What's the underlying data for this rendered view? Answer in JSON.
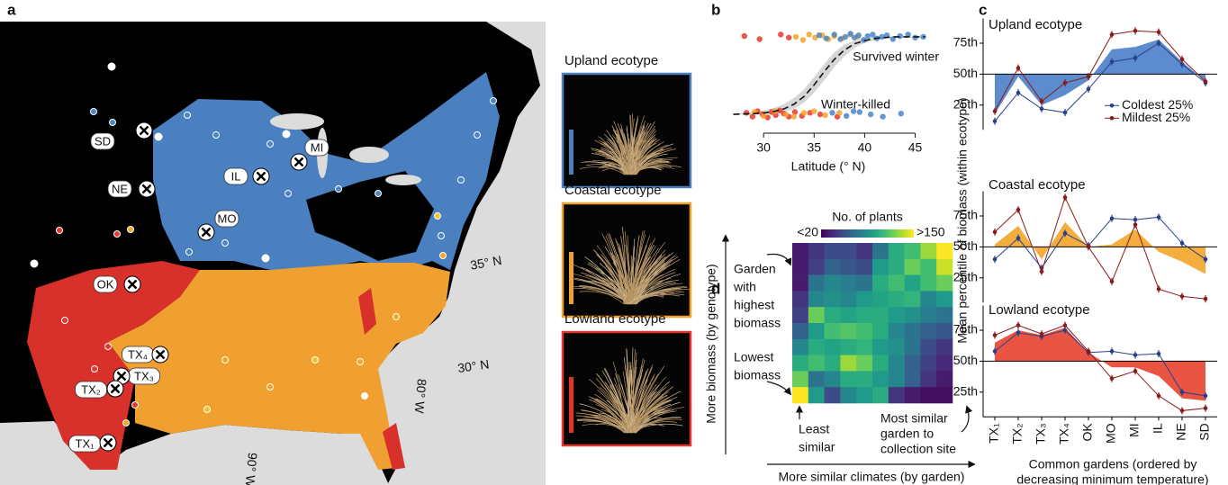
{
  "map": {
    "panel": "a",
    "sites": [
      "SD",
      "NE",
      "MO",
      "OK",
      "IL",
      "MI",
      "TX₄",
      "TX₃",
      "TX₂",
      "TX₁"
    ],
    "latitude_labels": [
      "35° N",
      "30° N"
    ],
    "longitude_labels": [
      "90° W",
      "80° W"
    ]
  },
  "photos": [
    {
      "title": "Upland ecotype",
      "color": "#4a80c0"
    },
    {
      "title": "Coastal ecotype",
      "color": "#f0a030"
    },
    {
      "title": "Lowland ecotype",
      "color": "#e0352c"
    }
  ],
  "chart_data": [
    {
      "type": "scatter",
      "panel": "b",
      "xlabel": "Latitude (° N)",
      "xlim": [
        26.6,
        46.2
      ],
      "xticks": [
        30,
        35,
        40,
        45
      ],
      "ylim": [
        -0.15,
        1.15
      ],
      "annotations": [
        "Survived winter",
        "Winter-killed"
      ],
      "series": [
        {
          "color": "#e8372f",
          "x": [
            28.1,
            29.6,
            31.7,
            32.5,
            28.3,
            28.9,
            29.4,
            29.9,
            30.4,
            30.8,
            31.2,
            31.6,
            32.0,
            32.5,
            33.1,
            33.8,
            34.6,
            35.6,
            37.3
          ],
          "values": [
            1.01,
            0.97,
            1.03,
            0.99,
            0.02,
            -0.03,
            0.04,
            0.0,
            -0.04,
            0.03,
            -0.01,
            0.05,
            0.01,
            -0.03,
            0.03,
            -0.02,
            0.02,
            0.0,
            -0.03
          ]
        },
        {
          "color": "#f2a529",
          "x": [
            33.2,
            33.9,
            34.5,
            35.1,
            35.8,
            36.4,
            37.0,
            37.8,
            38.6,
            39.3,
            29.1,
            30.0,
            31.1,
            32.2,
            33.0,
            34.0,
            35.0,
            36.1,
            37.5
          ],
          "values": [
            1.0,
            0.96,
            1.03,
            0.99,
            1.02,
            0.97,
            1.01,
            0.98,
            1.03,
            1.0,
            0.03,
            -0.02,
            0.04,
            0.0,
            -0.03,
            0.02,
            0.04,
            -0.01,
            0.02
          ]
        },
        {
          "color": "#4a86c8",
          "x": [
            35.5,
            36.2,
            37.0,
            37.6,
            38.1,
            38.6,
            39.0,
            39.4,
            39.9,
            40.3,
            40.8,
            41.2,
            41.7,
            42.2,
            42.8,
            43.5,
            44.3,
            45.0,
            45.8,
            36.8,
            38.2,
            39.5,
            40.6,
            41.8,
            43.6,
            38.9
          ],
          "values": [
            1.02,
            0.98,
            1.03,
            0.97,
            1.0,
            1.04,
            0.99,
            1.02,
            0.96,
            1.01,
            1.03,
            0.98,
            1.0,
            1.02,
            0.97,
            1.01,
            1.03,
            0.99,
            1.0,
            0.02,
            -0.02,
            0.03,
            0.0,
            -0.03,
            0.01,
            0.04
          ]
        }
      ],
      "curve": {
        "x": [
          27,
          28,
          29,
          30,
          31,
          32,
          33,
          34,
          35,
          36,
          37,
          38,
          39,
          40,
          41,
          42,
          43,
          44,
          45,
          46
        ],
        "values": [
          0.0,
          0.005,
          0.009,
          0.018,
          0.036,
          0.07,
          0.13,
          0.23,
          0.38,
          0.55,
          0.71,
          0.83,
          0.91,
          0.95,
          0.98,
          0.99,
          1.0,
          1.0,
          1.0,
          1.0
        ],
        "band_lower": [
          0.0,
          0.0,
          0.0,
          0.0,
          0.01,
          0.03,
          0.07,
          0.15,
          0.28,
          0.44,
          0.61,
          0.75,
          0.86,
          0.92,
          0.96,
          0.98,
          0.99,
          0.99,
          0.99,
          0.99
        ],
        "band_upper": [
          0.01,
          0.02,
          0.03,
          0.05,
          0.08,
          0.13,
          0.21,
          0.32,
          0.48,
          0.65,
          0.8,
          0.9,
          0.95,
          0.98,
          1.0,
          1.0,
          1.0,
          1.0,
          1.0,
          1.0
        ]
      }
    },
    {
      "type": "line",
      "panel": "c",
      "title": "Upland ecotype",
      "ylabel": "Mean percentile of biomass (within ecotype)",
      "ylim": [
        5,
        95
      ],
      "yticks": [
        {
          "value": 25,
          "label": "25th"
        },
        {
          "value": 50,
          "label": "50th"
        },
        {
          "value": 75,
          "label": "75th"
        }
      ],
      "baseline": 50,
      "legend": "lower right",
      "series": [
        {
          "name": "Coldest 25%",
          "color": "#27408b",
          "values": [
            12,
            35,
            22,
            19,
            38,
            60,
            63,
            75,
            58,
            43
          ]
        },
        {
          "name": "Mildest 25%",
          "color": "#8b1a1a",
          "values": [
            20,
            55,
            28,
            43,
            48,
            82,
            85,
            84,
            62,
            44
          ]
        }
      ],
      "fill": {
        "color": "#4a80c8",
        "values": [
          18,
          48,
          25,
          33,
          45,
          70,
          72,
          78,
          60,
          44
        ]
      }
    },
    {
      "type": "line",
      "title": "Coastal ecotype",
      "ylim": [
        5,
        95
      ],
      "yticks": [
        {
          "value": 25,
          "label": "25th"
        },
        {
          "value": 50,
          "label": "50th"
        },
        {
          "value": 75,
          "label": "75th"
        }
      ],
      "baseline": 50,
      "series": [
        {
          "color": "#27408b",
          "values": [
            40,
            57,
            33,
            61,
            51,
            73,
            72,
            74,
            53,
            40
          ]
        },
        {
          "color": "#8b1a1a",
          "values": [
            62,
            80,
            30,
            90,
            50,
            22,
            68,
            16,
            10,
            8
          ]
        }
      ],
      "fill": {
        "color": "#f2a529",
        "values": [
          52,
          67,
          40,
          70,
          50,
          52,
          64,
          46,
          38,
          28
        ]
      }
    },
    {
      "type": "line",
      "title": "Lowland ecotype",
      "categories": [
        "TX₁",
        "TX₂",
        "TX₃",
        "TX₄",
        "OK",
        "MO",
        "MI",
        "IL",
        "NE",
        "SD"
      ],
      "xlabel": [
        "Common gardens (ordered by",
        "decreasing minimum temperature)"
      ],
      "ylim": [
        5,
        95
      ],
      "yticks": [
        {
          "value": 25,
          "label": "25th"
        },
        {
          "value": 50,
          "label": "50th"
        },
        {
          "value": 75,
          "label": "75th"
        }
      ],
      "baseline": 50,
      "series": [
        {
          "color": "#27408b",
          "values": [
            58,
            73,
            70,
            75,
            57,
            58,
            55,
            56,
            25,
            22
          ]
        },
        {
          "color": "#8b1a1a",
          "values": [
            71,
            79,
            72,
            79,
            58,
            36,
            42,
            22,
            10,
            12
          ]
        }
      ],
      "fill": {
        "color": "#e8432f",
        "values": [
          65,
          75,
          71,
          77,
          57,
          45,
          45,
          38,
          20,
          18
        ]
      }
    },
    {
      "type": "heatmap",
      "panel": "d",
      "colorbar_title": "No. of plants",
      "zlim": [
        20,
        150
      ],
      "colorbar_ticks": [
        {
          "value": 20,
          "label": "<20"
        },
        {
          "value": 150,
          "label": ">150"
        }
      ],
      "colormap": "viridis",
      "ylabel": "More biomass (by genotype)",
      "xlabel": "More similar climates (by garden)",
      "annotations": [
        [
          "Garden",
          "with",
          "highest",
          "biomass"
        ],
        [
          "Lowest",
          "biomass"
        ],
        [
          "Least",
          "similar"
        ],
        [
          "Most similar",
          "garden to",
          "collection site"
        ]
      ],
      "z": [
        [
          30,
          40,
          50,
          50,
          40,
          70,
          100,
          110,
          130,
          160
        ],
        [
          30,
          45,
          60,
          55,
          50,
          90,
          100,
          120,
          110,
          140
        ],
        [
          30,
          70,
          80,
          75,
          70,
          100,
          110,
          95,
          110,
          120
        ],
        [
          40,
          80,
          85,
          80,
          90,
          95,
          100,
          105,
          80,
          90
        ],
        [
          45,
          120,
          100,
          95,
          100,
          100,
          90,
          85,
          75,
          70
        ],
        [
          60,
          90,
          110,
          115,
          110,
          100,
          80,
          70,
          60,
          55
        ],
        [
          80,
          100,
          95,
          100,
          105,
          90,
          85,
          70,
          50,
          40
        ],
        [
          100,
          110,
          100,
          130,
          120,
          100,
          80,
          60,
          45,
          35
        ],
        [
          120,
          70,
          80,
          100,
          100,
          90,
          80,
          60,
          40,
          30
        ],
        [
          160,
          90,
          50,
          80,
          90,
          100,
          40,
          30,
          25,
          25
        ]
      ]
    }
  ]
}
